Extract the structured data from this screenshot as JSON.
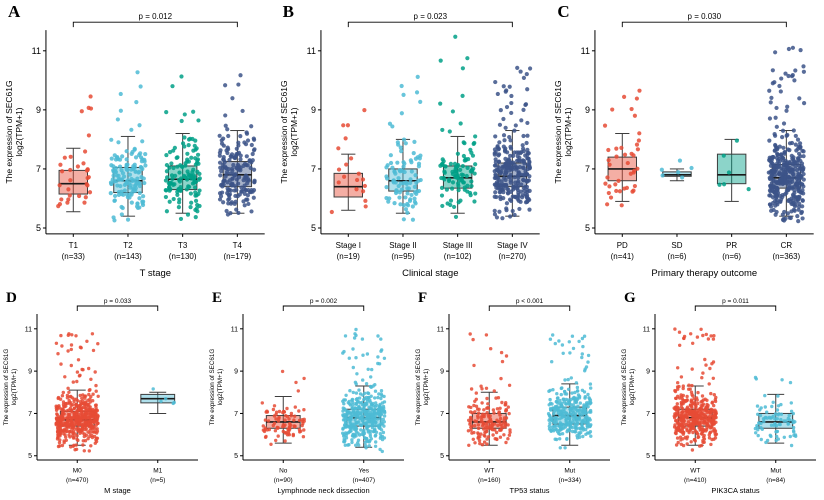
{
  "figure": {
    "background": "#ffffff",
    "axis_color": "#000000",
    "box_outline_color": "#3d3d3d",
    "median_color": "#1a1a1a"
  },
  "chart_data": [
    {
      "panel": "A",
      "type": "boxplot",
      "xlabel": "T stage",
      "ylabel_line1": "The expression of SEC61G",
      "ylabel_line2": "log2(TPM+1)",
      "yticks": [
        5,
        7,
        9,
        11
      ],
      "ylim": [
        4.8,
        11.7
      ],
      "p_label": "p = 0.012",
      "bracket": [
        0,
        3
      ],
      "groups": [
        {
          "label": "T1",
          "n_label": "(n=33)",
          "n": 33,
          "color": "#E64B35",
          "median": 6.5,
          "q1": 6.15,
          "q3": 6.95,
          "whisker_low": 5.55,
          "whisker_high": 7.7,
          "min": 5.3,
          "max": 9.6
        },
        {
          "label": "T2",
          "n_label": "(n=143)",
          "n": 143,
          "color": "#4DBBD5",
          "median": 6.6,
          "q1": 6.2,
          "q3": 7.05,
          "whisker_low": 5.4,
          "whisker_high": 8.1,
          "min": 5.2,
          "max": 10.4
        },
        {
          "label": "T3",
          "n_label": "(n=130)",
          "n": 130,
          "color": "#00A087",
          "median": 6.65,
          "q1": 6.3,
          "q3": 7.1,
          "whisker_low": 5.5,
          "whisker_high": 8.2,
          "min": 5.3,
          "max": 10.3
        },
        {
          "label": "T4",
          "n_label": "(n=179)",
          "n": 179,
          "color": "#3C5488",
          "median": 6.8,
          "q1": 6.4,
          "q3": 7.25,
          "whisker_low": 5.5,
          "whisker_high": 8.3,
          "min": 5.2,
          "max": 10.6
        }
      ]
    },
    {
      "panel": "B",
      "type": "boxplot",
      "xlabel": "Clinical stage",
      "ylabel_line1": "The expression of SEC61G",
      "ylabel_line2": "log2(TPM+1)",
      "yticks": [
        5,
        7,
        9,
        11
      ],
      "ylim": [
        4.8,
        11.7
      ],
      "p_label": "p = 0.023",
      "bracket": [
        0,
        3
      ],
      "groups": [
        {
          "label": "Stage I",
          "n_label": "(n=19)",
          "n": 19,
          "color": "#E64B35",
          "median": 6.4,
          "q1": 6.05,
          "q3": 6.85,
          "whisker_low": 5.6,
          "whisker_high": 7.5,
          "min": 5.5,
          "max": 9.3
        },
        {
          "label": "Stage II",
          "n_label": "(n=95)",
          "n": 95,
          "color": "#4DBBD5",
          "median": 6.6,
          "q1": 6.25,
          "q3": 7.0,
          "whisker_low": 5.5,
          "whisker_high": 8.0,
          "min": 5.2,
          "max": 10.2
        },
        {
          "label": "Stage III",
          "n_label": "(n=102)",
          "n": 102,
          "color": "#00A087",
          "median": 6.7,
          "q1": 6.35,
          "q3": 7.1,
          "whisker_low": 5.5,
          "whisker_high": 8.1,
          "min": 5.3,
          "max": 11.5
        },
        {
          "label": "Stage IV",
          "n_label": "(n=270)",
          "n": 270,
          "color": "#3C5488",
          "median": 6.75,
          "q1": 6.4,
          "q3": 7.2,
          "whisker_low": 5.4,
          "whisker_high": 8.3,
          "min": 5.2,
          "max": 10.8
        }
      ]
    },
    {
      "panel": "C",
      "type": "boxplot",
      "xlabel": "Primary therapy outcome",
      "ylabel_line1": "The expression of SEC61G",
      "ylabel_line2": "log2(TPM+1)",
      "yticks": [
        5,
        7,
        9,
        11
      ],
      "ylim": [
        4.8,
        11.7
      ],
      "p_label": "p = 0.030",
      "bracket": [
        0,
        3
      ],
      "groups": [
        {
          "label": "PD",
          "n_label": "(n=41)",
          "n": 41,
          "color": "#E64B35",
          "median": 7.0,
          "q1": 6.6,
          "q3": 7.4,
          "whisker_low": 5.9,
          "whisker_high": 8.2,
          "min": 5.4,
          "max": 9.9
        },
        {
          "label": "SD",
          "n_label": "(n=6)",
          "n": 6,
          "color": "#4DBBD5",
          "median": 6.8,
          "q1": 6.75,
          "q3": 6.9,
          "whisker_low": 6.6,
          "whisker_high": 7.0,
          "min": 6.5,
          "max": 8.0
        },
        {
          "label": "PR",
          "n_label": "(n=6)",
          "n": 6,
          "color": "#00A087",
          "median": 6.8,
          "q1": 6.5,
          "q3": 7.5,
          "whisker_low": 5.9,
          "whisker_high": 8.0,
          "min": 5.8,
          "max": 8.1
        },
        {
          "label": "CR",
          "n_label": "(n=363)",
          "n": 363,
          "color": "#3C5488",
          "median": 6.7,
          "q1": 6.35,
          "q3": 7.15,
          "whisker_low": 5.4,
          "whisker_high": 8.3,
          "min": 5.2,
          "max": 11.2
        }
      ]
    },
    {
      "panel": "D",
      "type": "boxplot",
      "xlabel": "M stage",
      "ylabel_line1": "The expression of SEC61G",
      "ylabel_line2": "log2(TPM+1)",
      "yticks": [
        5,
        7,
        9,
        11
      ],
      "ylim": [
        4.8,
        11.7
      ],
      "p_label": "p = 0.033",
      "bracket": [
        0,
        1
      ],
      "groups": [
        {
          "label": "M0",
          "n_label": "(n=470)",
          "n": 470,
          "color": "#E64B35",
          "median": 6.7,
          "q1": 6.4,
          "q3": 7.1,
          "whisker_low": 5.5,
          "whisker_high": 8.1,
          "min": 5.2,
          "max": 10.9
        },
        {
          "label": "M1",
          "n_label": "(n=5)",
          "n": 5,
          "color": "#4DBBD5",
          "median": 7.7,
          "q1": 7.5,
          "q3": 7.9,
          "whisker_low": 7.0,
          "whisker_high": 8.0,
          "min": 6.9,
          "max": 9.9
        }
      ]
    },
    {
      "panel": "E",
      "type": "boxplot",
      "xlabel": "Lymphnode neck dissection",
      "ylabel_line1": "The expression of SEC61G",
      "ylabel_line2": "log2(TPM+1)",
      "yticks": [
        5,
        7,
        9,
        11
      ],
      "ylim": [
        4.8,
        11.7
      ],
      "p_label": "p = 0.002",
      "bracket": [
        0,
        1
      ],
      "groups": [
        {
          "label": "No",
          "n_label": "(n=90)",
          "n": 90,
          "color": "#E64B35",
          "median": 6.6,
          "q1": 6.3,
          "q3": 6.9,
          "whisker_low": 5.6,
          "whisker_high": 7.8,
          "min": 5.3,
          "max": 9.8
        },
        {
          "label": "Yes",
          "n_label": "(n=407)",
          "n": 407,
          "color": "#4DBBD5",
          "median": 6.8,
          "q1": 6.4,
          "q3": 7.2,
          "whisker_low": 5.4,
          "whisker_high": 8.3,
          "min": 5.2,
          "max": 11.0
        }
      ]
    },
    {
      "panel": "F",
      "type": "boxplot",
      "xlabel": "TP53 status",
      "ylabel_line1": "The expression of SEC61G",
      "ylabel_line2": "log2(TPM+1)",
      "yticks": [
        5,
        7,
        9,
        11
      ],
      "ylim": [
        4.8,
        11.7
      ],
      "p_label": "p < 0.001",
      "bracket": [
        0,
        1
      ],
      "groups": [
        {
          "label": "WT",
          "n_label": "(n=160)",
          "n": 160,
          "color": "#E64B35",
          "median": 6.6,
          "q1": 6.3,
          "q3": 7.0,
          "whisker_low": 5.5,
          "whisker_high": 8.0,
          "min": 5.2,
          "max": 10.8
        },
        {
          "label": "Mut",
          "n_label": "(n=334)",
          "n": 334,
          "color": "#4DBBD5",
          "median": 6.9,
          "q1": 6.5,
          "q3": 7.3,
          "whisker_low": 5.5,
          "whisker_high": 8.4,
          "min": 5.2,
          "max": 10.9
        }
      ]
    },
    {
      "panel": "G",
      "type": "boxplot",
      "xlabel": "PIK3CA status",
      "ylabel_line1": "The expression of SEC61G",
      "ylabel_line2": "log2(TPM+1)",
      "yticks": [
        5,
        7,
        9,
        11
      ],
      "ylim": [
        4.8,
        11.7
      ],
      "p_label": "p = 0.011",
      "bracket": [
        0,
        1
      ],
      "groups": [
        {
          "label": "WT",
          "n_label": "(n=410)",
          "n": 410,
          "color": "#E64B35",
          "median": 6.8,
          "q1": 6.4,
          "q3": 7.2,
          "whisker_low": 5.5,
          "whisker_high": 8.3,
          "min": 5.2,
          "max": 11.0
        },
        {
          "label": "Mut",
          "n_label": "(n=84)",
          "n": 84,
          "color": "#4DBBD5",
          "median": 6.6,
          "q1": 6.3,
          "q3": 7.0,
          "whisker_low": 5.6,
          "whisker_high": 7.9,
          "min": 5.3,
          "max": 9.9
        }
      ]
    }
  ]
}
